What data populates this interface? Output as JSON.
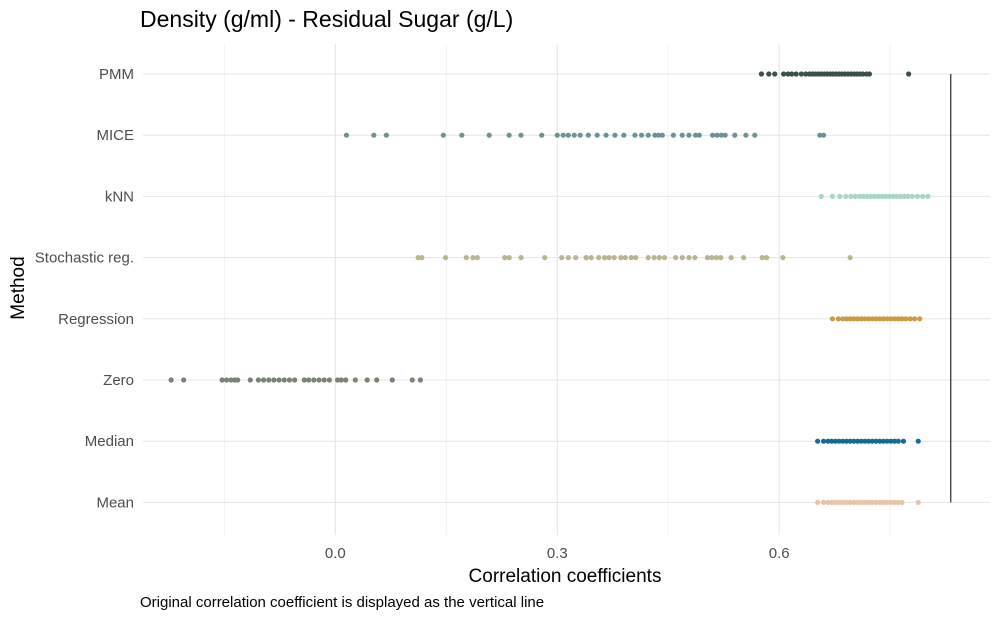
{
  "chart_data": {
    "type": "scatter",
    "title": "Density (g/ml) - Residual Sugar (g/L)",
    "xlabel": "Correlation coefficients",
    "ylabel": "Method",
    "caption": "Original correlation coefficient is displayed as the vertical line",
    "xlim": [
      -0.26,
      0.885
    ],
    "x_ticks": [
      0.0,
      0.3,
      0.6
    ],
    "x_tick_labels": [
      "0.0",
      "0.3",
      "0.6"
    ],
    "reference_line": 0.832,
    "grid": true,
    "legend": "none",
    "categories": [
      "PMM",
      "MICE",
      "kNN",
      "Stochastic reg.",
      "Regression",
      "Zero",
      "Median",
      "Mean"
    ],
    "series": [
      {
        "category": "PMM",
        "color": "#3d4f4c",
        "values": [
          0.576,
          0.586,
          0.594,
          0.606,
          0.612,
          0.617,
          0.623,
          0.63,
          0.636,
          0.641,
          0.645,
          0.649,
          0.653,
          0.657,
          0.661,
          0.665,
          0.669,
          0.673,
          0.677,
          0.681,
          0.685,
          0.689,
          0.693,
          0.697,
          0.701,
          0.705,
          0.709,
          0.713,
          0.718,
          0.722,
          0.775
        ]
      },
      {
        "category": "MICE",
        "color": "#6b9394",
        "values": [
          0.015,
          0.052,
          0.069,
          0.146,
          0.171,
          0.208,
          0.235,
          0.251,
          0.279,
          0.3,
          0.308,
          0.315,
          0.323,
          0.331,
          0.342,
          0.354,
          0.366,
          0.378,
          0.39,
          0.405,
          0.414,
          0.423,
          0.432,
          0.437,
          0.442,
          0.457,
          0.469,
          0.478,
          0.487,
          0.492,
          0.51,
          0.516,
          0.522,
          0.527,
          0.54,
          0.555,
          0.567,
          0.655,
          0.66
        ]
      },
      {
        "category": "kNN",
        "color": "#a8d5c8",
        "values": [
          0.657,
          0.672,
          0.682,
          0.69,
          0.697,
          0.703,
          0.709,
          0.714,
          0.719,
          0.724,
          0.729,
          0.734,
          0.739,
          0.744,
          0.749,
          0.754,
          0.759,
          0.764,
          0.769,
          0.774,
          0.78,
          0.787,
          0.794,
          0.801
        ]
      },
      {
        "category": "Stochastic reg.",
        "color": "#b9b58f",
        "values": [
          0.112,
          0.117,
          0.149,
          0.177,
          0.186,
          0.192,
          0.229,
          0.235,
          0.251,
          0.283,
          0.306,
          0.315,
          0.325,
          0.339,
          0.346,
          0.356,
          0.364,
          0.37,
          0.377,
          0.386,
          0.392,
          0.4,
          0.406,
          0.423,
          0.431,
          0.438,
          0.445,
          0.46,
          0.469,
          0.478,
          0.486,
          0.503,
          0.509,
          0.515,
          0.521,
          0.535,
          0.552,
          0.577,
          0.583,
          0.605,
          0.696
        ]
      },
      {
        "category": "Regression",
        "color": "#c89a4a",
        "values": [
          0.672,
          0.68,
          0.686,
          0.691,
          0.696,
          0.701,
          0.706,
          0.711,
          0.716,
          0.721,
          0.726,
          0.731,
          0.736,
          0.741,
          0.746,
          0.751,
          0.756,
          0.761,
          0.766,
          0.771,
          0.777,
          0.783,
          0.79
        ]
      },
      {
        "category": "Zero",
        "color": "#7a8471",
        "values": [
          -0.222,
          -0.205,
          -0.153,
          -0.147,
          -0.141,
          -0.136,
          -0.132,
          -0.115,
          -0.104,
          -0.097,
          -0.09,
          -0.083,
          -0.076,
          -0.069,
          -0.062,
          -0.055,
          -0.042,
          -0.036,
          -0.029,
          -0.022,
          -0.015,
          -0.008,
          0.003,
          0.008,
          0.014,
          0.027,
          0.043,
          0.056,
          0.077,
          0.104,
          0.115
        ]
      },
      {
        "category": "Median",
        "color": "#176a93",
        "values": [
          0.652,
          0.66,
          0.666,
          0.671,
          0.676,
          0.681,
          0.686,
          0.691,
          0.696,
          0.701,
          0.706,
          0.711,
          0.716,
          0.721,
          0.726,
          0.731,
          0.736,
          0.741,
          0.746,
          0.751,
          0.756,
          0.761,
          0.768,
          0.788
        ]
      },
      {
        "category": "Mean",
        "color": "#e8c4a5",
        "values": [
          0.652,
          0.66,
          0.666,
          0.671,
          0.676,
          0.681,
          0.686,
          0.691,
          0.696,
          0.701,
          0.706,
          0.711,
          0.716,
          0.721,
          0.726,
          0.731,
          0.736,
          0.741,
          0.746,
          0.751,
          0.756,
          0.761,
          0.766,
          0.788
        ]
      }
    ]
  }
}
